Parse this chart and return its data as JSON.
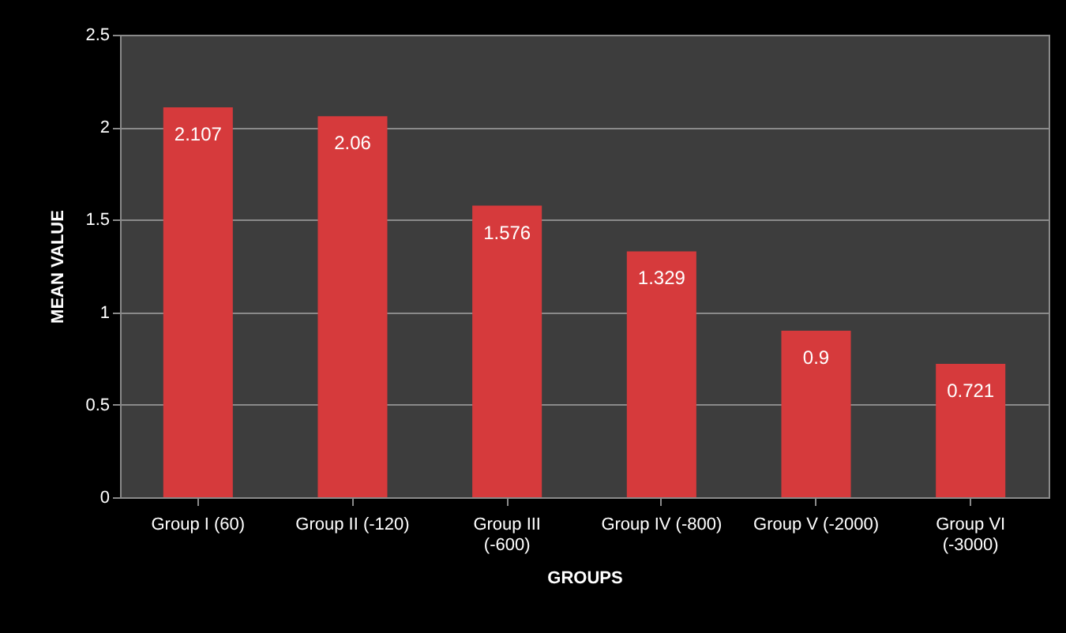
{
  "chart_data": {
    "type": "bar",
    "xlabel": "GROUPS",
    "ylabel": "MEAN VALUE",
    "categories": [
      "Group I (60)",
      "Group II (-120)",
      "Group III (-600)",
      "Group IV (-800)",
      "Group V (-2000)",
      "Group VI (-3000)"
    ],
    "values": [
      2.107,
      2.06,
      1.576,
      1.329,
      0.9,
      0.721
    ],
    "color": "#d63a3c",
    "ylim": [
      0,
      2.5
    ],
    "yticks": [
      0,
      0.5,
      1,
      1.5,
      2,
      2.5
    ],
    "grid": "y",
    "data_labels": true
  }
}
